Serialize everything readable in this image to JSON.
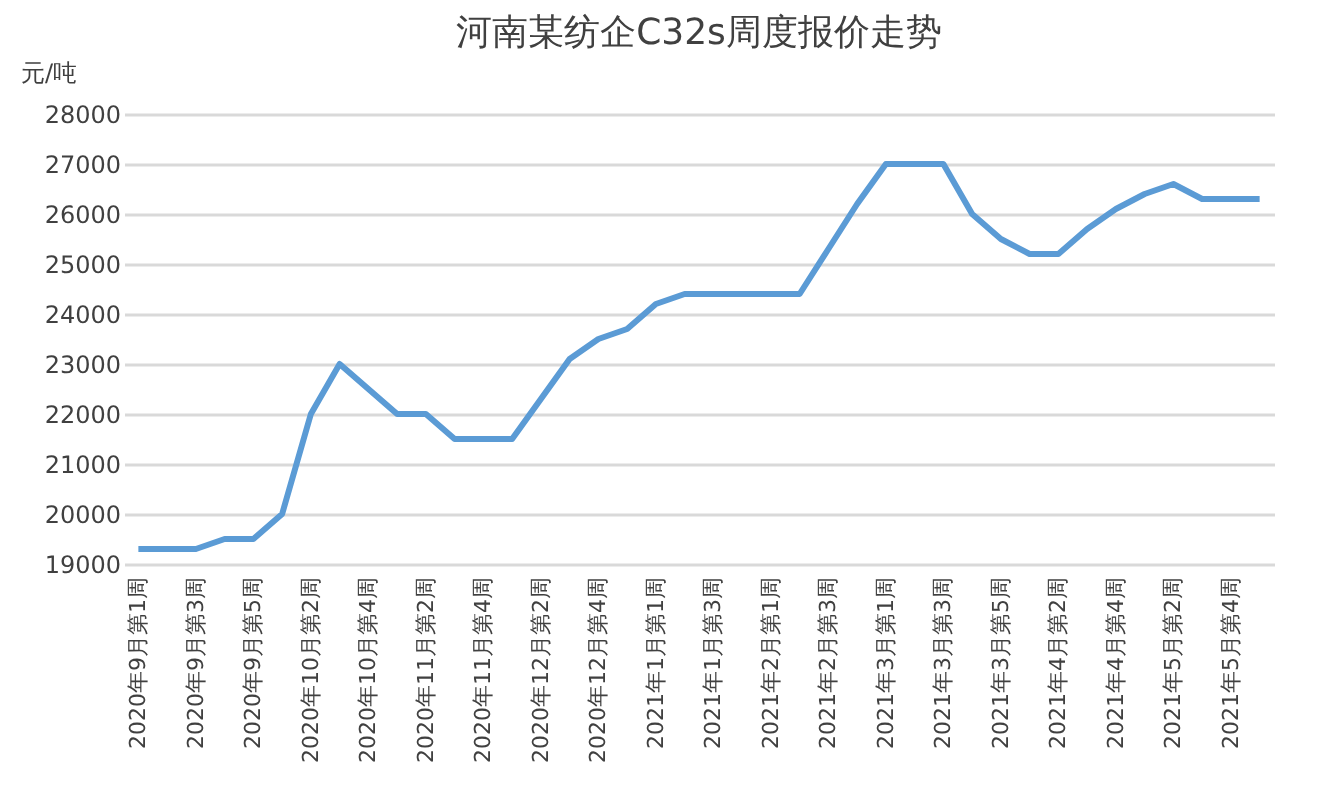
{
  "chart_data": {
    "type": "line",
    "title": "河南某纺企C32s周度报价走势",
    "ylabel": "元/吨",
    "categories": [
      "2020年9月第1周",
      null,
      "2020年9月第3周",
      null,
      "2020年9月第5周",
      null,
      "2020年10月第2周",
      null,
      "2020年10月第4周",
      null,
      "2020年11月第2周",
      null,
      "2020年11月第4周",
      null,
      "2020年12月第2周",
      null,
      "2020年12月第4周",
      null,
      "2021年1月第1周",
      null,
      "2021年1月第3周",
      null,
      "2021年2月第1周",
      null,
      "2021年2月第3周",
      null,
      "2021年3月第1周",
      null,
      "2021年3月第3周",
      null,
      "2021年3月第5周",
      null,
      "2021年4月第2周",
      null,
      "2021年4月第4周",
      null,
      "2021年5月第2周",
      null,
      "2021年5月第4周",
      null
    ],
    "series": [
      {
        "color": "#5b9bd5",
        "values": [
          19300,
          19300,
          19300,
          19500,
          19500,
          20000,
          22000,
          23000,
          22500,
          22000,
          22000,
          21500,
          21500,
          21500,
          22300,
          23100,
          23500,
          23700,
          24200,
          24400,
          24400,
          24400,
          24400,
          24400,
          25300,
          26200,
          27000,
          27000,
          27000,
          26000,
          25500,
          25200,
          25200,
          25700,
          26100,
          26400,
          26600,
          26300,
          26300,
          26300
        ]
      }
    ],
    "ylim": [
      19000,
      28000
    ],
    "yticks": [
      19000,
      20000,
      21000,
      22000,
      23000,
      24000,
      25000,
      26000,
      27000,
      28000
    ],
    "grid": "y",
    "marker": "none",
    "line_style": "solid"
  }
}
